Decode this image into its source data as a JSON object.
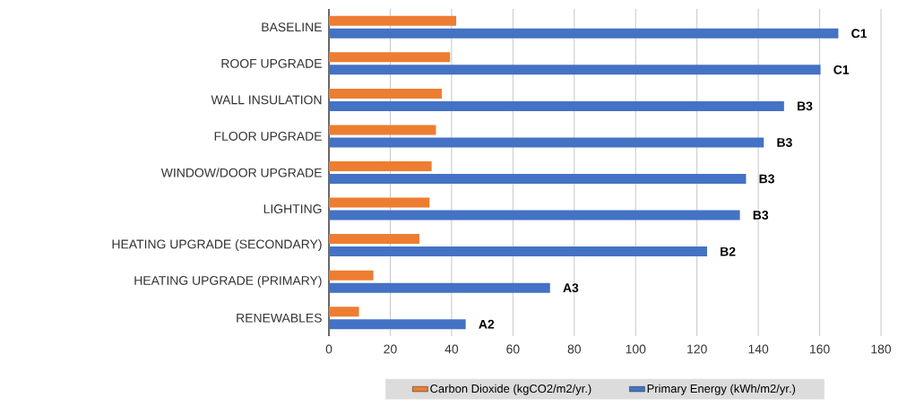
{
  "chart_data": {
    "type": "bar",
    "orientation": "horizontal",
    "categories": [
      "BASELINE",
      "ROOF UPGRADE",
      "WALL INSULATION",
      "FLOOR UPGRADE",
      "WINDOW/DOOR UPGRADE",
      "LIGHTING",
      "HEATING UPGRADE (SECONDARY)",
      "HEATING UPGRADE (PRIMARY)",
      "RENEWABLES"
    ],
    "series": [
      {
        "name": "Carbon Dioxide (kgCO2/m2/yr.)",
        "color": "#ed7d31",
        "values": [
          41.5,
          39.5,
          36.8,
          34.9,
          33.5,
          32.8,
          29.5,
          14.5,
          9.8
        ]
      },
      {
        "name": "Primary Energy (kWh/m2/yr.)",
        "color": "#4472c4",
        "values": [
          166.1,
          160.3,
          148.4,
          141.8,
          136,
          134,
          123.3,
          72.1,
          44.6
        ],
        "value_labels": [
          "C1",
          "C1",
          "B3",
          "B3",
          "B3",
          "B3",
          "B2",
          "A3",
          "A2"
        ]
      }
    ],
    "xlim": [
      0,
      180
    ],
    "xticks": [
      0,
      20,
      40,
      60,
      80,
      100,
      120,
      140,
      160,
      180
    ],
    "grid": "x",
    "legend": "bottom"
  }
}
